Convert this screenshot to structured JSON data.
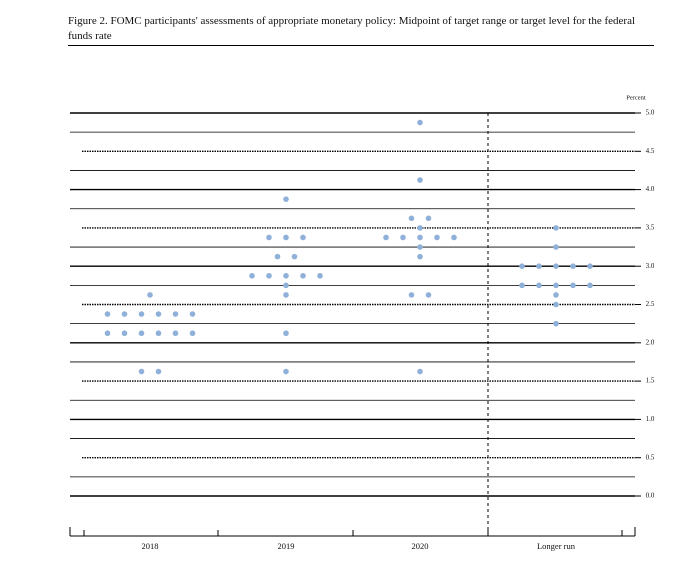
{
  "chart_data": {
    "type": "dot",
    "title": "Figure 2. FOMC participants' assessments of appropriate monetary policy: Midpoint of target range or target level for the federal funds rate",
    "ylabel": "Percent",
    "categories": [
      "2018",
      "2019",
      "2020",
      "Longer run"
    ],
    "values": [
      [
        2.625,
        2.375,
        2.375,
        2.375,
        2.375,
        2.375,
        2.375,
        2.125,
        2.125,
        2.125,
        2.125,
        2.125,
        2.125,
        1.625,
        1.625
      ],
      [
        3.875,
        3.375,
        3.375,
        3.375,
        3.125,
        3.125,
        2.875,
        2.875,
        2.875,
        2.875,
        2.875,
        2.75,
        2.625,
        2.125,
        1.625
      ],
      [
        4.875,
        4.125,
        3.625,
        3.625,
        3.5,
        3.375,
        3.375,
        3.375,
        3.375,
        3.375,
        3.25,
        3.125,
        2.625,
        2.625,
        1.625
      ],
      [
        3.5,
        3.25,
        3.0,
        3.0,
        3.0,
        3.0,
        3.0,
        2.75,
        2.75,
        2.75,
        2.75,
        2.75,
        2.625,
        2.5,
        2.25
      ]
    ],
    "color": "#8fb0d8",
    "ylim": [
      0,
      5
    ],
    "yticks": [
      {
        "value": 0,
        "label": "0.0"
      },
      {
        "value": 0.5,
        "label": "0.5"
      },
      {
        "value": 1,
        "label": "1.0"
      },
      {
        "value": 1.5,
        "label": "1.5"
      },
      {
        "value": 2,
        "label": "2.0"
      },
      {
        "value": 2.5,
        "label": "2.5"
      },
      {
        "value": 3,
        "label": "3.0"
      },
      {
        "value": 3.5,
        "label": "3.5"
      },
      {
        "value": 4,
        "label": "4.0"
      },
      {
        "value": 4.5,
        "label": "4.5"
      },
      {
        "value": 5,
        "label": "5.0"
      }
    ],
    "grid": true
  }
}
